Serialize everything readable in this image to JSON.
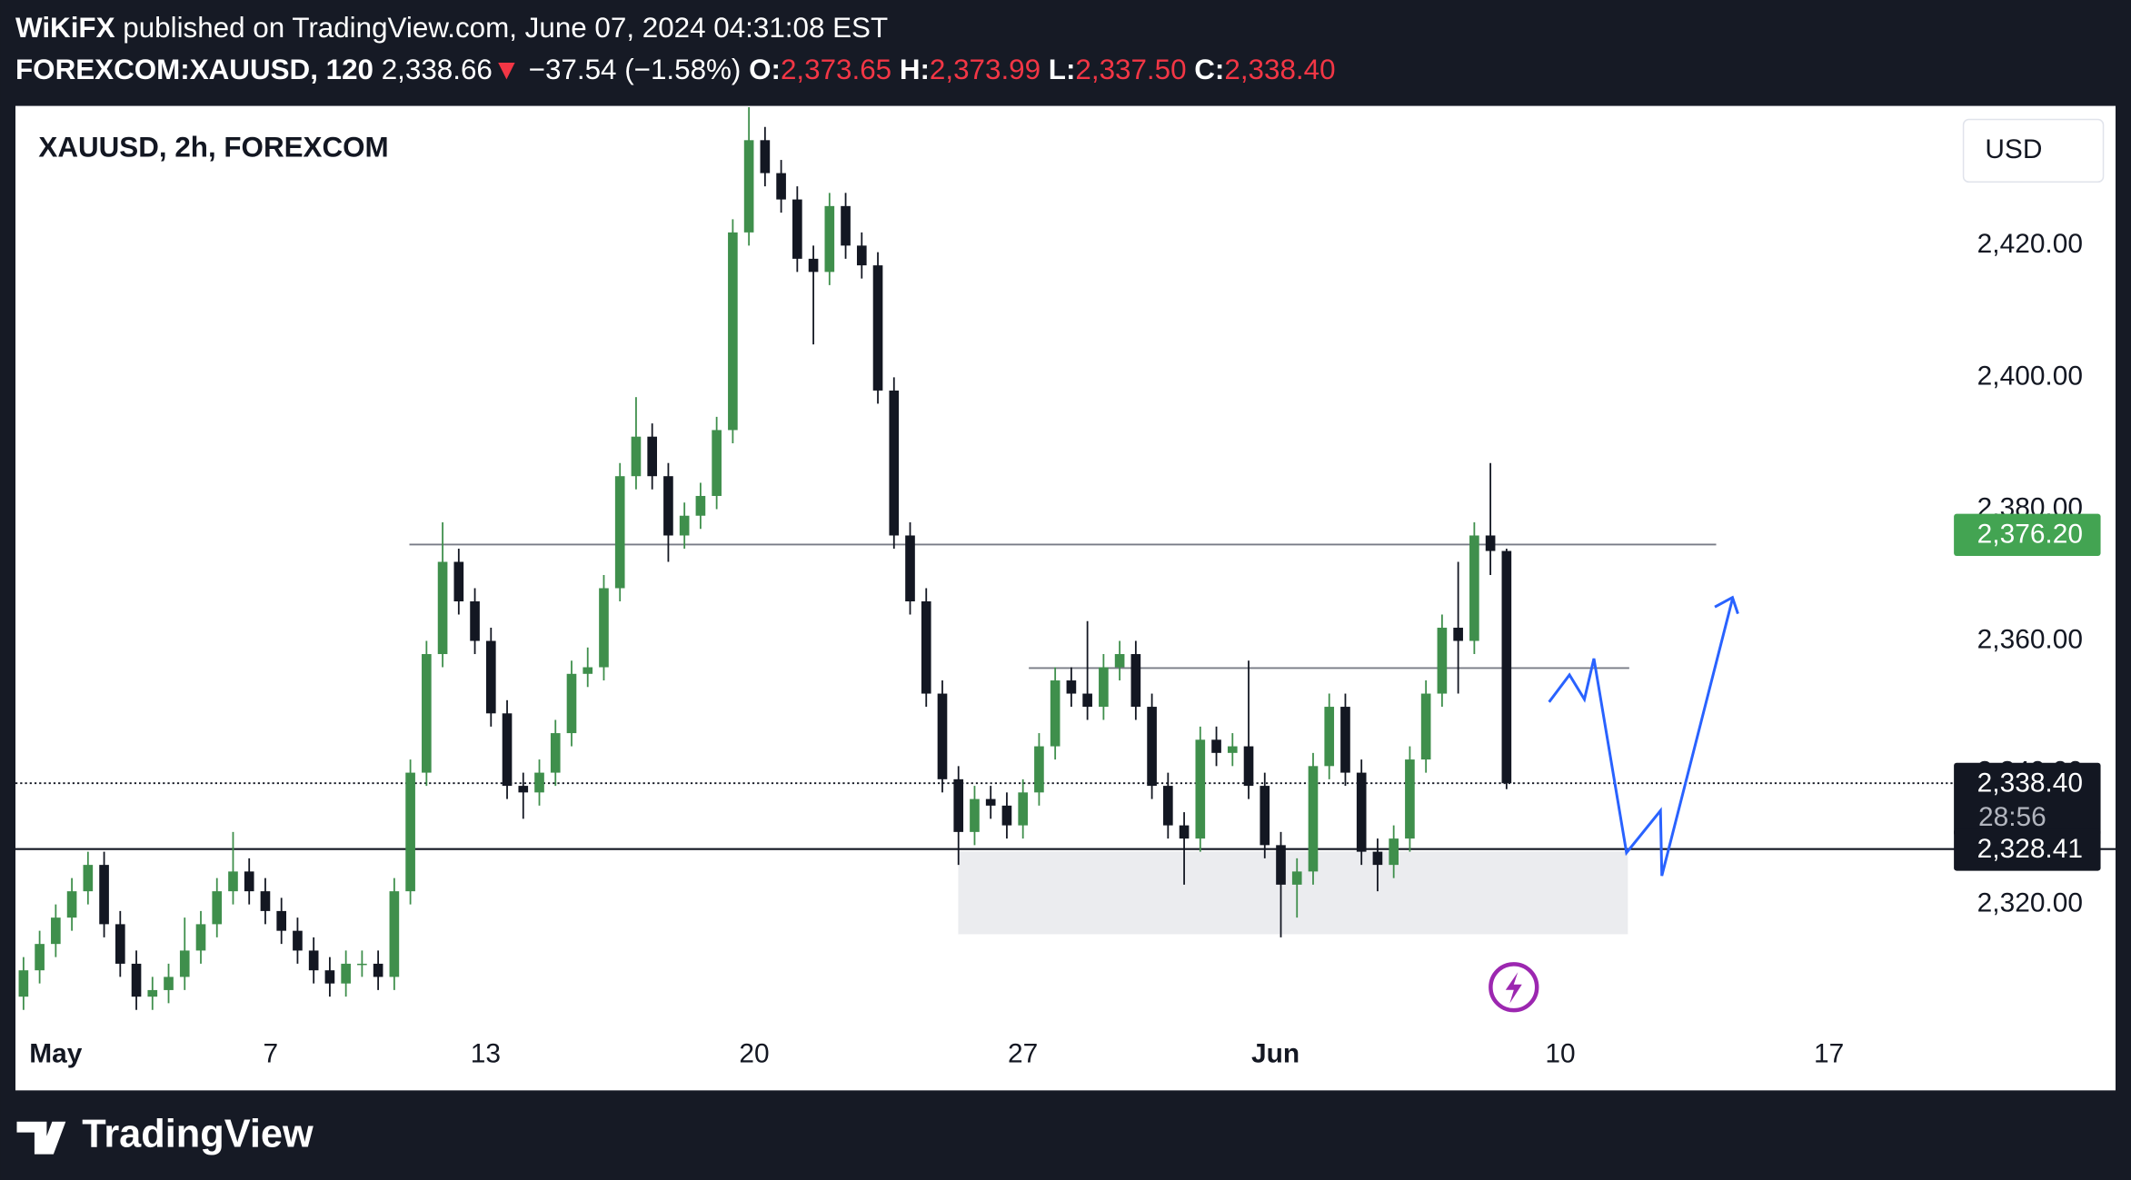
{
  "header": {
    "publisher": "WiKiFX",
    "published": "published on TradingView.com, June 07, 2024 04:31:08 EST",
    "symbol": "FOREXCOM:XAUUSD, 120",
    "last": "2,338.66",
    "arrow": "▼",
    "change": "−37.54 (−1.58%)",
    "o_label": "O:",
    "o": "2,373.65",
    "h_label": "H:",
    "h": "2,373.99",
    "l_label": "L:",
    "l": "2,337.50",
    "c_label": "C:",
    "c": "2,338.40"
  },
  "chart_data": {
    "type": "candlestick",
    "title": "XAUUSD, 2h, FOREXCOM",
    "currency": "USD",
    "up_color": "#3f8f4c",
    "down_color": "#131722",
    "x": [
      -0.6,
      -0.3,
      0,
      0.3,
      0.6,
      0.9,
      1.2,
      1.5,
      1.8,
      2.1,
      2.4,
      2.7,
      3,
      3.3,
      3.6,
      3.9,
      4.2,
      4.5,
      4.8,
      5.1,
      5.4,
      5.7,
      6,
      6.3,
      6.6,
      6.9,
      7.2,
      7.5,
      7.8,
      8.1,
      8.4,
      8.7,
      9,
      9.3,
      9.6,
      9.9,
      10.2,
      10.5,
      10.8,
      11.1,
      11.4,
      11.7,
      12,
      12.3,
      12.6,
      12.9,
      13.2,
      13.5,
      13.8,
      14.1,
      14.4,
      14.7,
      15,
      15.3,
      15.6,
      15.9,
      16.2,
      16.5,
      16.8,
      17.1,
      17.4,
      17.7,
      18,
      18.3,
      18.6,
      18.9,
      19.2,
      19.5,
      19.8,
      20.1,
      20.4,
      20.7,
      21,
      21.3,
      21.6,
      21.9,
      22.2,
      22.5,
      22.8,
      23.1,
      23.4,
      23.7,
      24,
      24.3,
      24.6,
      24.9,
      25.2,
      25.5,
      25.8,
      26.1,
      26.4,
      26.7,
      27
    ],
    "open": [
      2306,
      2310,
      2314,
      2318,
      2322,
      2326,
      2317,
      2311,
      2306,
      2307,
      2309,
      2313,
      2317,
      2322,
      2325,
      2322,
      2319,
      2316,
      2313,
      2310,
      2308,
      2311,
      2311,
      2309,
      2322,
      2340,
      2358,
      2372,
      2366,
      2360,
      2349,
      2338,
      2337,
      2340,
      2346,
      2355,
      2356,
      2368,
      2385,
      2391,
      2385,
      2376,
      2379,
      2382,
      2392,
      2422,
      2436,
      2431,
      2427,
      2418,
      2416,
      2426,
      2420,
      2417,
      2398,
      2376,
      2366,
      2352,
      2339,
      2331,
      2336,
      2335,
      2332,
      2337,
      2344,
      2354,
      2352,
      2350,
      2356,
      2358,
      2350,
      2338,
      2332,
      2330,
      2345,
      2343,
      2344,
      2338,
      2329,
      2323,
      2325,
      2341,
      2350,
      2340,
      2328,
      2326,
      2330,
      2342,
      2352,
      2362,
      2360,
      2376,
      2373.65
    ],
    "high": [
      2312,
      2316,
      2320,
      2324,
      2328,
      2328,
      2319,
      2313,
      2309,
      2311,
      2318,
      2319,
      2324,
      2331,
      2327,
      2324,
      2321,
      2318,
      2315,
      2312,
      2313,
      2313,
      2313,
      2324,
      2342,
      2360,
      2378,
      2374,
      2368,
      2362,
      2351,
      2340,
      2342,
      2348,
      2357,
      2359,
      2370,
      2387,
      2397,
      2393,
      2387,
      2381,
      2384,
      2394,
      2424,
      2441,
      2438,
      2433,
      2429,
      2420,
      2428,
      2428,
      2422,
      2419,
      2400,
      2378,
      2368,
      2354,
      2341,
      2338,
      2338,
      2337,
      2339,
      2346,
      2356,
      2356,
      2363,
      2358,
      2360,
      2360,
      2352,
      2340,
      2334,
      2347,
      2347,
      2346,
      2357,
      2340,
      2331,
      2327,
      2343,
      2352,
      2352,
      2342,
      2330,
      2332,
      2344,
      2354,
      2364,
      2372,
      2378,
      2387,
      2373.99
    ],
    "low": [
      2304,
      2308,
      2312,
      2316,
      2320,
      2315,
      2309,
      2304,
      2304,
      2305,
      2307,
      2311,
      2315,
      2320,
      2320,
      2317,
      2314,
      2311,
      2308,
      2306,
      2306,
      2309,
      2307,
      2307,
      2320,
      2338,
      2356,
      2364,
      2358,
      2347,
      2336,
      2333,
      2335,
      2338,
      2344,
      2353,
      2354,
      2366,
      2383,
      2383,
      2372,
      2374,
      2377,
      2380,
      2390,
      2420,
      2429,
      2425,
      2416,
      2405,
      2414,
      2418,
      2415,
      2396,
      2374,
      2364,
      2350,
      2337,
      2326,
      2329,
      2333,
      2330,
      2330,
      2335,
      2342,
      2350,
      2348,
      2348,
      2354,
      2348,
      2336,
      2330,
      2323,
      2328,
      2341,
      2341,
      2336,
      2327,
      2315,
      2318,
      2323,
      2339,
      2338,
      2326,
      2322,
      2324,
      2328,
      2340,
      2350,
      2352,
      2358,
      2370,
      2337.5
    ],
    "close": [
      2310,
      2314,
      2318,
      2322,
      2326,
      2317,
      2311,
      2306,
      2307,
      2309,
      2313,
      2317,
      2322,
      2325,
      2322,
      2319,
      2316,
      2313,
      2310,
      2308,
      2311,
      2311,
      2309,
      2322,
      2340,
      2358,
      2372,
      2366,
      2360,
      2349,
      2338,
      2337,
      2340,
      2346,
      2355,
      2356,
      2368,
      2385,
      2391,
      2385,
      2376,
      2379,
      2382,
      2392,
      2422,
      2436,
      2431,
      2427,
      2418,
      2416,
      2426,
      2420,
      2417,
      2398,
      2376,
      2366,
      2352,
      2339,
      2331,
      2336,
      2335,
      2332,
      2337,
      2344,
      2354,
      2352,
      2350,
      2356,
      2358,
      2350,
      2338,
      2332,
      2330,
      2345,
      2343,
      2344,
      2338,
      2329,
      2323,
      2325,
      2341,
      2350,
      2340,
      2328,
      2326,
      2330,
      2342,
      2352,
      2362,
      2360,
      2376,
      2373.65,
      2338.4
    ],
    "xlim": [
      -0.75,
      35.3
    ],
    "ylim": [
      2302.7,
      2441.2
    ],
    "xticks": [
      {
        "value": 0,
        "label": "May"
      },
      {
        "value": 4,
        "label": "7"
      },
      {
        "value": 8,
        "label": "13"
      },
      {
        "value": 13,
        "label": "20"
      },
      {
        "value": 18,
        "label": "27"
      },
      {
        "value": 22.7,
        "label": "Jun"
      },
      {
        "value": 28,
        "label": "10"
      },
      {
        "value": 33,
        "label": "17"
      }
    ],
    "yticks": [
      {
        "value": 2320,
        "label": "2,320.00"
      },
      {
        "value": 2340,
        "label": "2,340.00"
      },
      {
        "value": 2360,
        "label": "2,360.00"
      },
      {
        "value": 2380,
        "label": "2,380.00"
      },
      {
        "value": 2400,
        "label": "2,400.00"
      },
      {
        "value": 2420,
        "label": "2,420.00"
      }
    ],
    "price_tags": [
      {
        "value": 2376.2,
        "label": "2,376.20",
        "color": "#43a452",
        "line": "none"
      },
      {
        "value": 2338.4,
        "label": "2,338.40",
        "color": "#131722",
        "line": "dotted",
        "countdown": "28:56"
      },
      {
        "value": 2328.41,
        "label": "2,328.41",
        "color": "#131722",
        "line": "solid"
      }
    ]
  },
  "footer": {
    "brand": "TradingView"
  }
}
